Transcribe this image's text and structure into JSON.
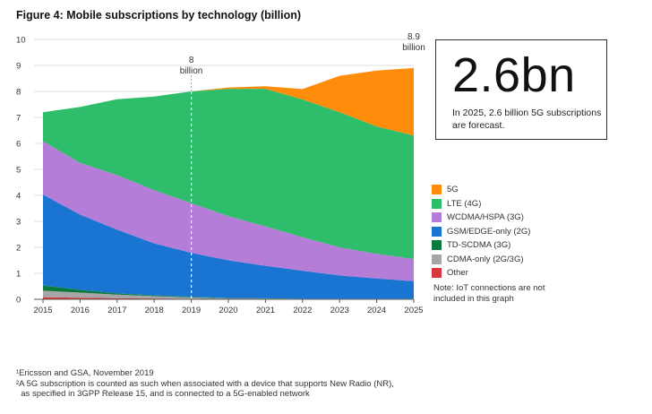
{
  "chart_data": {
    "type": "area",
    "title": "Figure 4: Mobile subscriptions by technology (billion)",
    "x": [
      2015,
      2016,
      2017,
      2018,
      2019,
      2020,
      2021,
      2022,
      2023,
      2024,
      2025
    ],
    "xlabels": [
      "2015",
      "2016",
      "2017",
      "2018",
      "2019",
      "2020",
      "2021",
      "2022",
      "2023",
      "2024",
      "2025"
    ],
    "ylim": [
      0,
      10
    ],
    "yticks": [
      "0",
      "1",
      "2",
      "3",
      "4",
      "5",
      "6",
      "7",
      "8",
      "9",
      "10"
    ],
    "stacked": true,
    "series": [
      {
        "name": "Other",
        "color": "#d9363e",
        "values": [
          0.08,
          0.06,
          0.04,
          0.03,
          0.02,
          0.01,
          0.01,
          0.01,
          0.01,
          0.01,
          0.01
        ]
      },
      {
        "name": "CDMA-only (2G/3G)",
        "color": "#a6a6a6",
        "values": [
          0.25,
          0.2,
          0.14,
          0.09,
          0.05,
          0.03,
          0.02,
          0.01,
          0.01,
          0.01,
          0.01
        ]
      },
      {
        "name": "TD-SCDMA (3G)",
        "color": "#0a7a3e",
        "values": [
          0.2,
          0.1,
          0.05,
          0.03,
          0.02,
          0.01,
          0.01,
          0.0,
          0.0,
          0.0,
          0.0
        ]
      },
      {
        "name": "GSM/EDGE-only (2G)",
        "color": "#1a75d2",
        "values": [
          3.5,
          2.9,
          2.45,
          2.0,
          1.7,
          1.45,
          1.25,
          1.08,
          0.9,
          0.78,
          0.68
        ]
      },
      {
        "name": "WCDMA/HSPA (3G)",
        "color": "#b57cd8",
        "values": [
          2.05,
          1.99,
          2.1,
          2.05,
          1.91,
          1.7,
          1.51,
          1.29,
          1.08,
          0.95,
          0.85
        ]
      },
      {
        "name": "LTE (4G)",
        "color": "#2ebd6a",
        "values": [
          1.12,
          2.15,
          2.92,
          3.6,
          4.3,
          4.9,
          5.3,
          5.3,
          5.2,
          4.9,
          4.75
        ]
      },
      {
        "name": "5G",
        "color": "#ff8c0a",
        "values": [
          0.0,
          0.0,
          0.0,
          0.0,
          0.0,
          0.05,
          0.1,
          0.4,
          1.4,
          2.15,
          2.6
        ]
      }
    ],
    "annotations": [
      {
        "x": 2019,
        "label_line1": "8",
        "label_line2": "billion"
      },
      {
        "x": 2025,
        "label_line1": "8.9",
        "label_line2": "billion"
      }
    ]
  },
  "callout": {
    "value": "2.6bn",
    "text": "In 2025, 2.6 billion 5G subscriptions are forecast."
  },
  "legend": [
    {
      "label": "5G",
      "color": "#ff8c0a"
    },
    {
      "label": "LTE (4G)",
      "color": "#2ebd6a"
    },
    {
      "label": "WCDMA/HSPA (3G)",
      "color": "#b57cd8"
    },
    {
      "label": "GSM/EDGE-only (2G)",
      "color": "#1a75d2"
    },
    {
      "label": "TD-SCDMA (3G)",
      "color": "#0a7a3e"
    },
    {
      "label": "CDMA-only (2G/3G)",
      "color": "#a6a6a6"
    },
    {
      "label": "Other",
      "color": "#d9363e"
    }
  ],
  "note": "Note: IoT connections are not included in this graph",
  "footnotes": [
    "¹Ericsson and GSA, November 2019",
    "²A 5G subscription is counted as such when associated with a device that supports New Radio (NR),",
    "  as specified in 3GPP Release 15, and is connected to a 5G-enabled network"
  ]
}
